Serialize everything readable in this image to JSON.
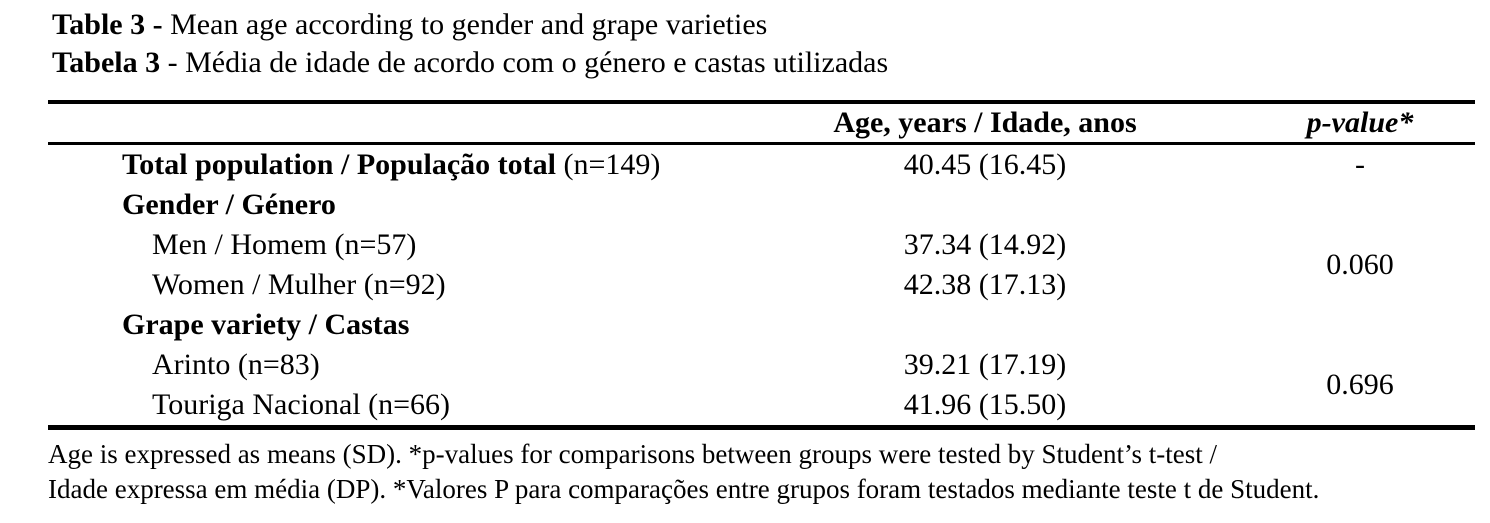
{
  "caption": {
    "en_label": "Table 3 -",
    "en_text": "Mean age according to gender and grape varieties",
    "pt_label": "Tabela 3",
    "pt_text": "- Média de idade de acordo com o género e castas utilizadas"
  },
  "table": {
    "headers": {
      "label": "",
      "age": "Age, years / Idade, anos",
      "p": "p-value*"
    },
    "rows": [
      {
        "label": "Total population / População total",
        "suffix": "(n=149)",
        "age": "40.45 (16.45)",
        "p": "-"
      },
      {
        "label": "Gender / Género"
      },
      {
        "label": "Men / Homem (n=57)",
        "age": "37.34 (14.92)",
        "p": "0.060"
      },
      {
        "label": "Women / Mulher (n=92)",
        "age": "42.38 (17.13)"
      },
      {
        "label": "Grape variety / Castas"
      },
      {
        "label": "Arinto (n=83)",
        "age": "39.21 (17.19)",
        "p": "0.696"
      },
      {
        "label": "Touriga Nacional (n=66)",
        "age": "41.96 (15.50)"
      }
    ]
  },
  "footnote": {
    "line1": "Age is expressed as means (SD). *p-values for comparisons between groups were tested by Student’s t-test /",
    "line2": "Idade expressa em média (DP). *Valores P para comparações entre grupos foram testados mediante teste t de Student."
  }
}
